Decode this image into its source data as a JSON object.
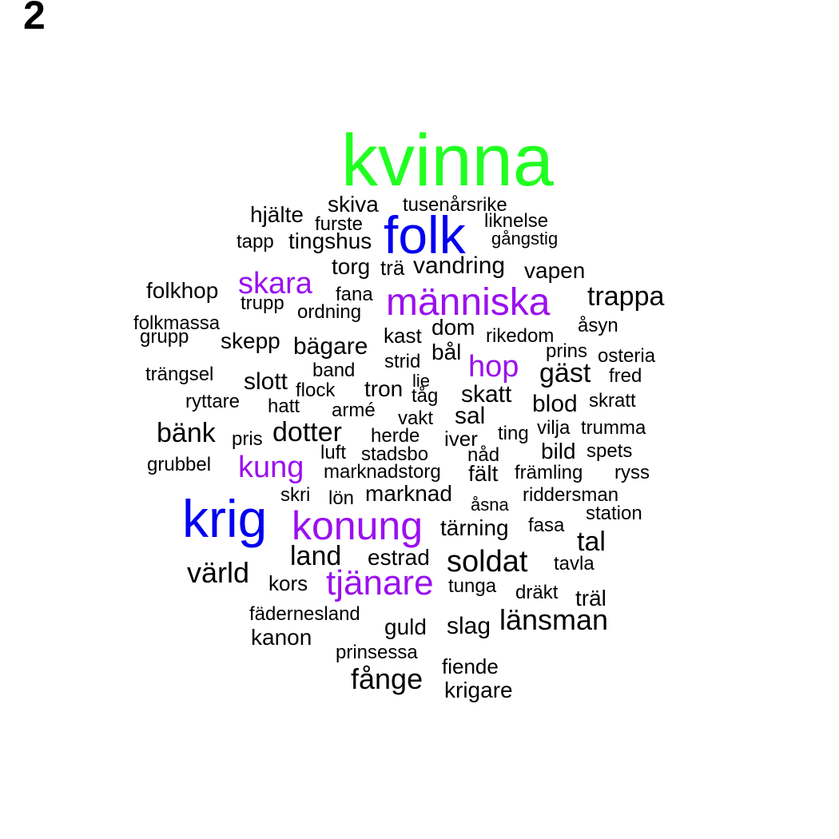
{
  "panel_label": "2",
  "palette": {
    "green": "#22ff22",
    "blue": "#0000ee",
    "purple": "#9b10ee",
    "black": "#000000"
  },
  "words": [
    {
      "text": "kvinna",
      "color": "green"
    },
    {
      "text": "folk",
      "color": "blue"
    },
    {
      "text": "krig",
      "color": "blue"
    },
    {
      "text": "människa",
      "color": "purple"
    },
    {
      "text": "konung",
      "color": "purple"
    },
    {
      "text": "skara",
      "color": "purple"
    },
    {
      "text": "hop",
      "color": "purple"
    },
    {
      "text": "kung",
      "color": "purple"
    },
    {
      "text": "tjänare",
      "color": "purple"
    },
    {
      "text": "skiva",
      "color": "black"
    },
    {
      "text": "tusenårsrike",
      "color": "black"
    },
    {
      "text": "hjälte",
      "color": "black"
    },
    {
      "text": "furste",
      "color": "black"
    },
    {
      "text": "liknelse",
      "color": "black"
    },
    {
      "text": "gångstig",
      "color": "black"
    },
    {
      "text": "tapp",
      "color": "black"
    },
    {
      "text": "tingshus",
      "color": "black"
    },
    {
      "text": "torg",
      "color": "black"
    },
    {
      "text": "trä",
      "color": "black"
    },
    {
      "text": "vandring",
      "color": "black"
    },
    {
      "text": "vapen",
      "color": "black"
    },
    {
      "text": "folkhop",
      "color": "black"
    },
    {
      "text": "fana",
      "color": "black"
    },
    {
      "text": "trappa",
      "color": "black"
    },
    {
      "text": "trupp",
      "color": "black"
    },
    {
      "text": "ordning",
      "color": "black"
    },
    {
      "text": "folkmassa",
      "color": "black"
    },
    {
      "text": "åsyn",
      "color": "black"
    },
    {
      "text": "grupp",
      "color": "black"
    },
    {
      "text": "skepp",
      "color": "black"
    },
    {
      "text": "bägare",
      "color": "black"
    },
    {
      "text": "kast",
      "color": "black"
    },
    {
      "text": "dom",
      "color": "black"
    },
    {
      "text": "rikedom",
      "color": "black"
    },
    {
      "text": "prins",
      "color": "black"
    },
    {
      "text": "osteria",
      "color": "black"
    },
    {
      "text": "bål",
      "color": "black"
    },
    {
      "text": "strid",
      "color": "black"
    },
    {
      "text": "trängsel",
      "color": "black"
    },
    {
      "text": "band",
      "color": "black"
    },
    {
      "text": "gäst",
      "color": "black"
    },
    {
      "text": "fred",
      "color": "black"
    },
    {
      "text": "slott",
      "color": "black"
    },
    {
      "text": "lie",
      "color": "black"
    },
    {
      "text": "tron",
      "color": "black"
    },
    {
      "text": "flock",
      "color": "black"
    },
    {
      "text": "skatt",
      "color": "black"
    },
    {
      "text": "ryttare",
      "color": "black"
    },
    {
      "text": "tåg",
      "color": "black"
    },
    {
      "text": "blod",
      "color": "black"
    },
    {
      "text": "skratt",
      "color": "black"
    },
    {
      "text": "hatt",
      "color": "black"
    },
    {
      "text": "armé",
      "color": "black"
    },
    {
      "text": "vakt",
      "color": "black"
    },
    {
      "text": "sal",
      "color": "black"
    },
    {
      "text": "bänk",
      "color": "black"
    },
    {
      "text": "dotter",
      "color": "black"
    },
    {
      "text": "ting",
      "color": "black"
    },
    {
      "text": "vilja",
      "color": "black"
    },
    {
      "text": "trumma",
      "color": "black"
    },
    {
      "text": "pris",
      "color": "black"
    },
    {
      "text": "herde",
      "color": "black"
    },
    {
      "text": "iver",
      "color": "black"
    },
    {
      "text": "luft",
      "color": "black"
    },
    {
      "text": "stadsbo",
      "color": "black"
    },
    {
      "text": "nåd",
      "color": "black"
    },
    {
      "text": "bild",
      "color": "black"
    },
    {
      "text": "spets",
      "color": "black"
    },
    {
      "text": "grubbel",
      "color": "black"
    },
    {
      "text": "marknadstorg",
      "color": "black"
    },
    {
      "text": "fält",
      "color": "black"
    },
    {
      "text": "främling",
      "color": "black"
    },
    {
      "text": "ryss",
      "color": "black"
    },
    {
      "text": "skri",
      "color": "black"
    },
    {
      "text": "lön",
      "color": "black"
    },
    {
      "text": "marknad",
      "color": "black"
    },
    {
      "text": "åsna",
      "color": "black"
    },
    {
      "text": "riddersman",
      "color": "black"
    },
    {
      "text": "station",
      "color": "black"
    },
    {
      "text": "tärning",
      "color": "black"
    },
    {
      "text": "fasa",
      "color": "black"
    },
    {
      "text": "tal",
      "color": "black"
    },
    {
      "text": "land",
      "color": "black"
    },
    {
      "text": "estrad",
      "color": "black"
    },
    {
      "text": "soldat",
      "color": "black"
    },
    {
      "text": "tavla",
      "color": "black"
    },
    {
      "text": "värld",
      "color": "black"
    },
    {
      "text": "kors",
      "color": "black"
    },
    {
      "text": "tunga",
      "color": "black"
    },
    {
      "text": "dräkt",
      "color": "black"
    },
    {
      "text": "träl",
      "color": "black"
    },
    {
      "text": "fädernesland",
      "color": "black"
    },
    {
      "text": "länsman",
      "color": "black"
    },
    {
      "text": "guld",
      "color": "black"
    },
    {
      "text": "slag",
      "color": "black"
    },
    {
      "text": "kanon",
      "color": "black"
    },
    {
      "text": "prinsessa",
      "color": "black"
    },
    {
      "text": "fiende",
      "color": "black"
    },
    {
      "text": "fånge",
      "color": "black"
    },
    {
      "text": "krigare",
      "color": "black"
    }
  ]
}
